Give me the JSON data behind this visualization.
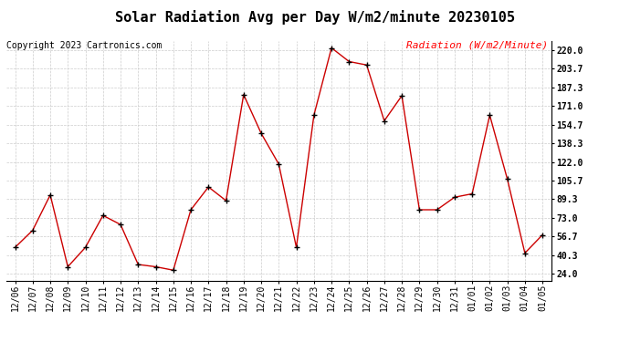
{
  "title": "Solar Radiation Avg per Day W/m2/minute 20230105",
  "copyright": "Copyright 2023 Cartronics.com",
  "legend_label": "Radiation (W/m2/Minute)",
  "background_color": "#ffffff",
  "line_color": "#cc0000",
  "marker_color": "#000000",
  "grid_color": "#cccccc",
  "dates": [
    "12/06",
    "12/07",
    "12/08",
    "12/09",
    "12/10",
    "12/11",
    "12/12",
    "12/13",
    "12/14",
    "12/15",
    "12/16",
    "12/17",
    "12/18",
    "12/19",
    "12/20",
    "12/21",
    "12/22",
    "12/23",
    "12/24",
    "12/25",
    "12/26",
    "12/27",
    "12/28",
    "12/29",
    "12/30",
    "12/31",
    "01/01",
    "01/02",
    "01/03",
    "01/04",
    "01/05"
  ],
  "values": [
    47,
    62,
    93,
    30,
    47,
    75,
    67,
    32,
    30,
    27,
    80,
    100,
    88,
    181,
    147,
    120,
    47,
    163,
    222,
    210,
    207,
    158,
    180,
    80,
    80,
    91,
    94,
    163,
    107,
    42,
    58
  ],
  "yticks": [
    24.0,
    40.3,
    56.7,
    73.0,
    89.3,
    105.7,
    122.0,
    138.3,
    154.7,
    171.0,
    187.3,
    203.7,
    220.0
  ],
  "ylim": [
    18,
    228
  ],
  "title_fontsize": 11,
  "tick_fontsize": 7,
  "legend_fontsize": 8,
  "copyright_fontsize": 7
}
